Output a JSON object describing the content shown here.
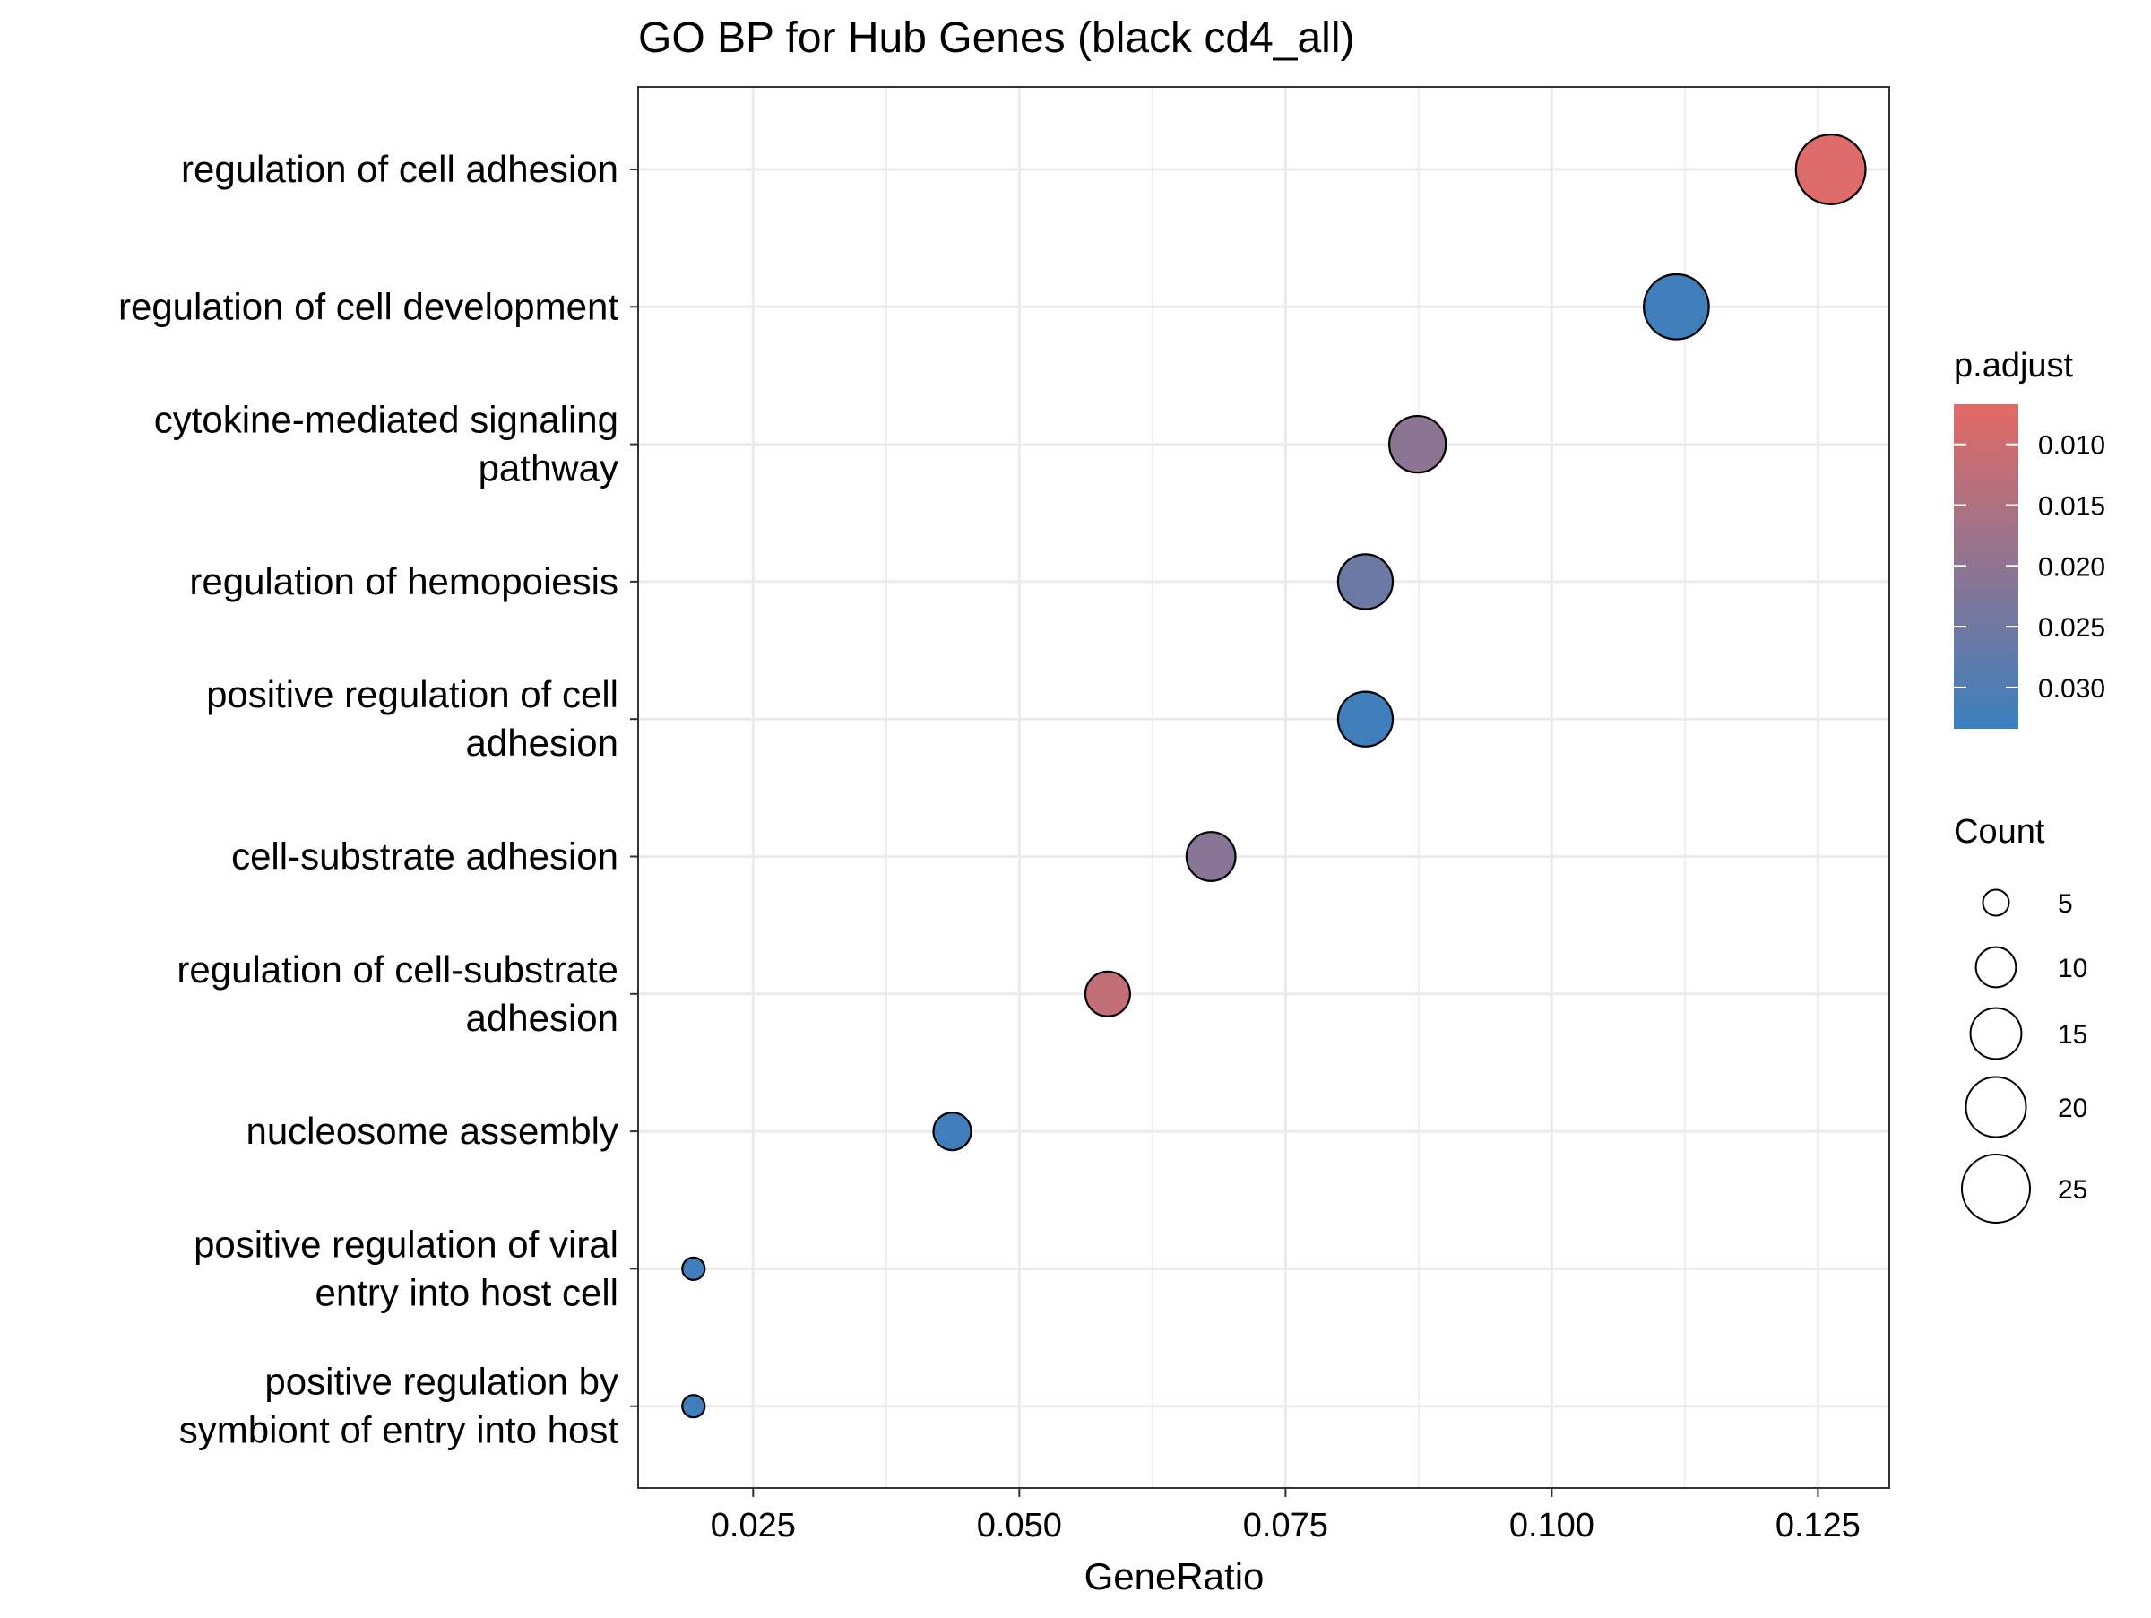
{
  "chart_data": {
    "type": "scatter",
    "title": "GO BP for Hub Genes (black cd4_all)",
    "xlabel": "GeneRatio",
    "ylabel": "",
    "xlim": [
      0.0142,
      0.1317
    ],
    "x_ticks": [
      0.025,
      0.05,
      0.075,
      0.1,
      0.125
    ],
    "x_tick_labels": [
      "0.025",
      "0.050",
      "0.075",
      "0.100",
      "0.125"
    ],
    "grid": true,
    "categories": [
      "regulation of cell adhesion",
      "regulation of cell development",
      "cytokine-mediated signaling pathway",
      "regulation of hemopoiesis",
      "positive regulation of cell adhesion",
      "cell-substrate adhesion",
      "regulation of cell-substrate adhesion",
      "nucleosome assembly",
      "positive regulation of viral entry into host cell",
      "positive regulation by symbiont of entry into host"
    ],
    "category_label_lines": [
      [
        "regulation of cell adhesion"
      ],
      [
        "regulation of cell development"
      ],
      [
        "cytokine-mediated signaling",
        "pathway"
      ],
      [
        "regulation of hemopoiesis"
      ],
      [
        "positive regulation of cell",
        "adhesion"
      ],
      [
        "cell-substrate adhesion"
      ],
      [
        "regulation of cell-substrate",
        "adhesion"
      ],
      [
        "nucleosome assembly"
      ],
      [
        "positive regulation of viral",
        "entry into host cell"
      ],
      [
        "positive regulation by",
        "symbiont of entry into host"
      ]
    ],
    "points": [
      {
        "category": "regulation of cell adhesion",
        "x": 0.1262,
        "count": 26,
        "p_adjust": 0.0078
      },
      {
        "category": "regulation of cell development",
        "x": 0.1117,
        "count": 23,
        "p_adjust": 0.0326
      },
      {
        "category": "cytokine-mediated signaling pathway",
        "x": 0.0874,
        "count": 18,
        "p_adjust": 0.0205
      },
      {
        "category": "regulation of hemopoiesis",
        "x": 0.0825,
        "count": 17,
        "p_adjust": 0.0255
      },
      {
        "category": "positive regulation of cell adhesion",
        "x": 0.0825,
        "count": 17,
        "p_adjust": 0.0326
      },
      {
        "category": "cell-substrate adhesion",
        "x": 0.068,
        "count": 14,
        "p_adjust": 0.021
      },
      {
        "category": "regulation of cell-substrate adhesion",
        "x": 0.0583,
        "count": 12,
        "p_adjust": 0.012
      },
      {
        "category": "nucleosome assembly",
        "x": 0.0437,
        "count": 9,
        "p_adjust": 0.0326
      },
      {
        "category": "positive regulation of viral entry into host cell",
        "x": 0.0194,
        "count": 4,
        "p_adjust": 0.0326
      },
      {
        "category": "positive regulation by symbiont of entry into host",
        "x": 0.0194,
        "count": 4,
        "p_adjust": 0.0326
      }
    ],
    "color_legend": {
      "title": "p.adjust",
      "range": [
        0.0067,
        0.0334
      ],
      "ticks": [
        0.01,
        0.015,
        0.02,
        0.025,
        0.03
      ],
      "tick_labels": [
        "0.010",
        "0.015",
        "0.020",
        "0.025",
        "0.030"
      ],
      "low_color": "#E36A65",
      "high_color": "#3A7FBE"
    },
    "size_legend": {
      "title": "Count",
      "values": [
        5,
        10,
        15,
        20,
        25
      ],
      "labels": [
        "5",
        "10",
        "15",
        "20",
        "25"
      ]
    },
    "point_stroke_color": "#000000",
    "panel_border_color": "#333333",
    "grid_color": "#EBEBEB"
  }
}
